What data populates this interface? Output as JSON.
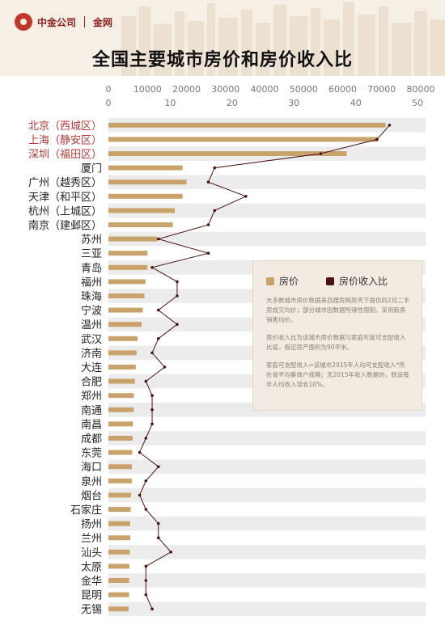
{
  "header": {
    "logo_text": "中金公司",
    "logo_sub": "金网",
    "title": "全国主要城市房价和房价收入比"
  },
  "legend": {
    "price_label": "房价",
    "ratio_label": "房价收入比",
    "note1": "大多数城市房价数据来自搜房网房天下提供的2月二手房成交均价；部分城市因数据所得性限制，采用新房销售均价。",
    "note2": "房价收入比为该城市房价数据与家庭年度可支配收入比值，假定房产面积为90平米。",
    "note3": "家庭可支配收入=该城市2015年人均可支配收入*所在省平均集体户规模；无2015年收入数据的，假设每年人均收入增长10%。"
  },
  "colors": {
    "price": "#c9a36b",
    "ratio": "#4a1414",
    "highlight": "#b03a3a",
    "axis_text": "#777777"
  },
  "chart_data": {
    "type": "bar",
    "title": "全国主要城市房价和房价收入比",
    "price_axis": {
      "ticks": [
        "0",
        "10000",
        "20000",
        "30000",
        "40000",
        "50000",
        "60000",
        "70000",
        "80000"
      ],
      "range": [
        0,
        80000
      ]
    },
    "ratio_axis": {
      "ticks": [
        "0",
        "10",
        "20",
        "30",
        "40",
        "50"
      ],
      "range": [
        0,
        50
      ]
    },
    "highlighted": [
      "北京（西城区）",
      "上海（静安区）",
      "深圳（福田区）"
    ],
    "categories": [
      "北京（西城区）",
      "上海（静安区）",
      "深圳（福田区）",
      "厦门",
      "广州（越秀区）",
      "天津（和平区）",
      "杭州（上城区）",
      "南京（建邺区）",
      "苏州",
      "三亚",
      "青岛",
      "福州",
      "珠海",
      "宁波",
      "温州",
      "武汉",
      "济南",
      "大连",
      "合肥",
      "郑州",
      "南通",
      "南昌",
      "成都",
      "东莞",
      "海口",
      "泉州",
      "烟台",
      "石家庄",
      "扬州",
      "兰州",
      "汕头",
      "太原",
      "金华",
      "昆明",
      "无锡"
    ],
    "series": [
      {
        "name": "房价",
        "values": [
          71000,
          69000,
          61000,
          19000,
          20000,
          19000,
          17000,
          16500,
          12500,
          10000,
          10000,
          9500,
          9200,
          8800,
          8500,
          7500,
          7200,
          7000,
          6800,
          6500,
          6500,
          6300,
          6200,
          6100,
          6000,
          6000,
          5800,
          5700,
          5600,
          5600,
          5500,
          5400,
          5300,
          5300,
          5200
        ]
      },
      {
        "name": "房价收入比",
        "values": [
          45,
          43,
          34,
          17,
          16,
          22,
          17,
          16,
          8,
          16,
          7,
          11,
          11,
          8,
          11,
          8,
          7,
          9,
          6,
          7,
          7,
          7,
          6,
          5,
          8,
          6,
          5,
          6,
          8,
          8,
          10,
          6,
          6,
          6,
          7
        ]
      }
    ]
  }
}
